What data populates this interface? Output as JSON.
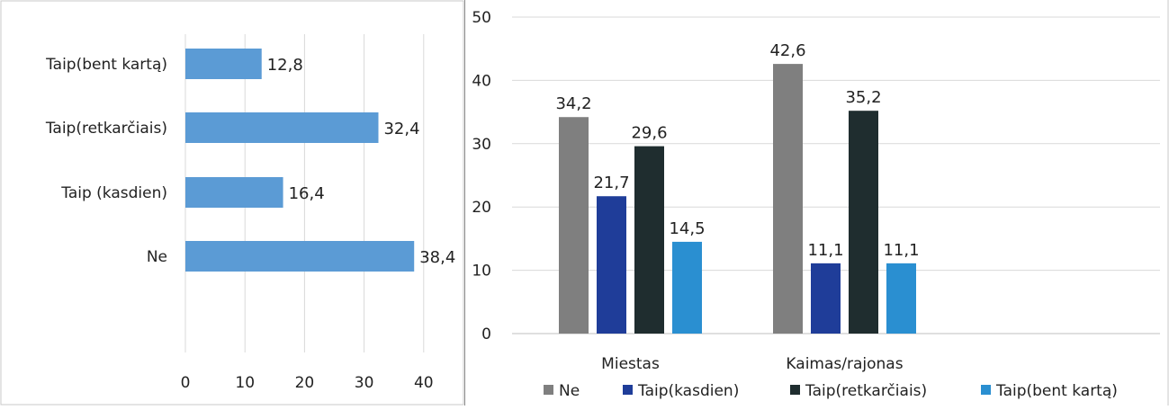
{
  "chart_data": [
    {
      "type": "bar",
      "orientation": "horizontal",
      "categories": [
        "Taip(bent kartą)",
        "Taip(retkarčiais)",
        "Taip (kasdien)",
        "Ne"
      ],
      "values": [
        12.8,
        32.4,
        16.4,
        38.4
      ],
      "value_labels": [
        "12,8",
        "32,4",
        "16,4",
        "38,4"
      ],
      "xlim": [
        0,
        45
      ],
      "xticks": [
        "0",
        "10",
        "20",
        "30",
        "40"
      ],
      "grid": "vertical",
      "color": "#5b9bd5"
    },
    {
      "type": "bar",
      "categories": [
        "Miestas",
        "Kaimas/rajonas"
      ],
      "series": [
        {
          "name": "Ne",
          "values": [
            34.2,
            42.6
          ],
          "labels": [
            "34,2",
            "42,6"
          ],
          "color": "#7f7f7f"
        },
        {
          "name": "Taip(kasdien)",
          "values": [
            21.7,
            11.1
          ],
          "labels": [
            "21,7",
            "11,1"
          ],
          "color": "#1f3d99"
        },
        {
          "name": "Taip(retkarčiais)",
          "values": [
            29.6,
            35.2
          ],
          "labels": [
            "29,6",
            "35,2"
          ],
          "color": "#1f2d2f"
        },
        {
          "name": "Taip(bent kartą)",
          "values": [
            14.5,
            11.1
          ],
          "labels": [
            "14,5",
            "11,1"
          ],
          "color": "#2a8fd1"
        }
      ],
      "ylim": [
        0,
        50
      ],
      "yticks": [
        "0",
        "10",
        "20",
        "30",
        "40",
        "50"
      ],
      "grid": "horizontal",
      "legend": "bottom"
    }
  ]
}
